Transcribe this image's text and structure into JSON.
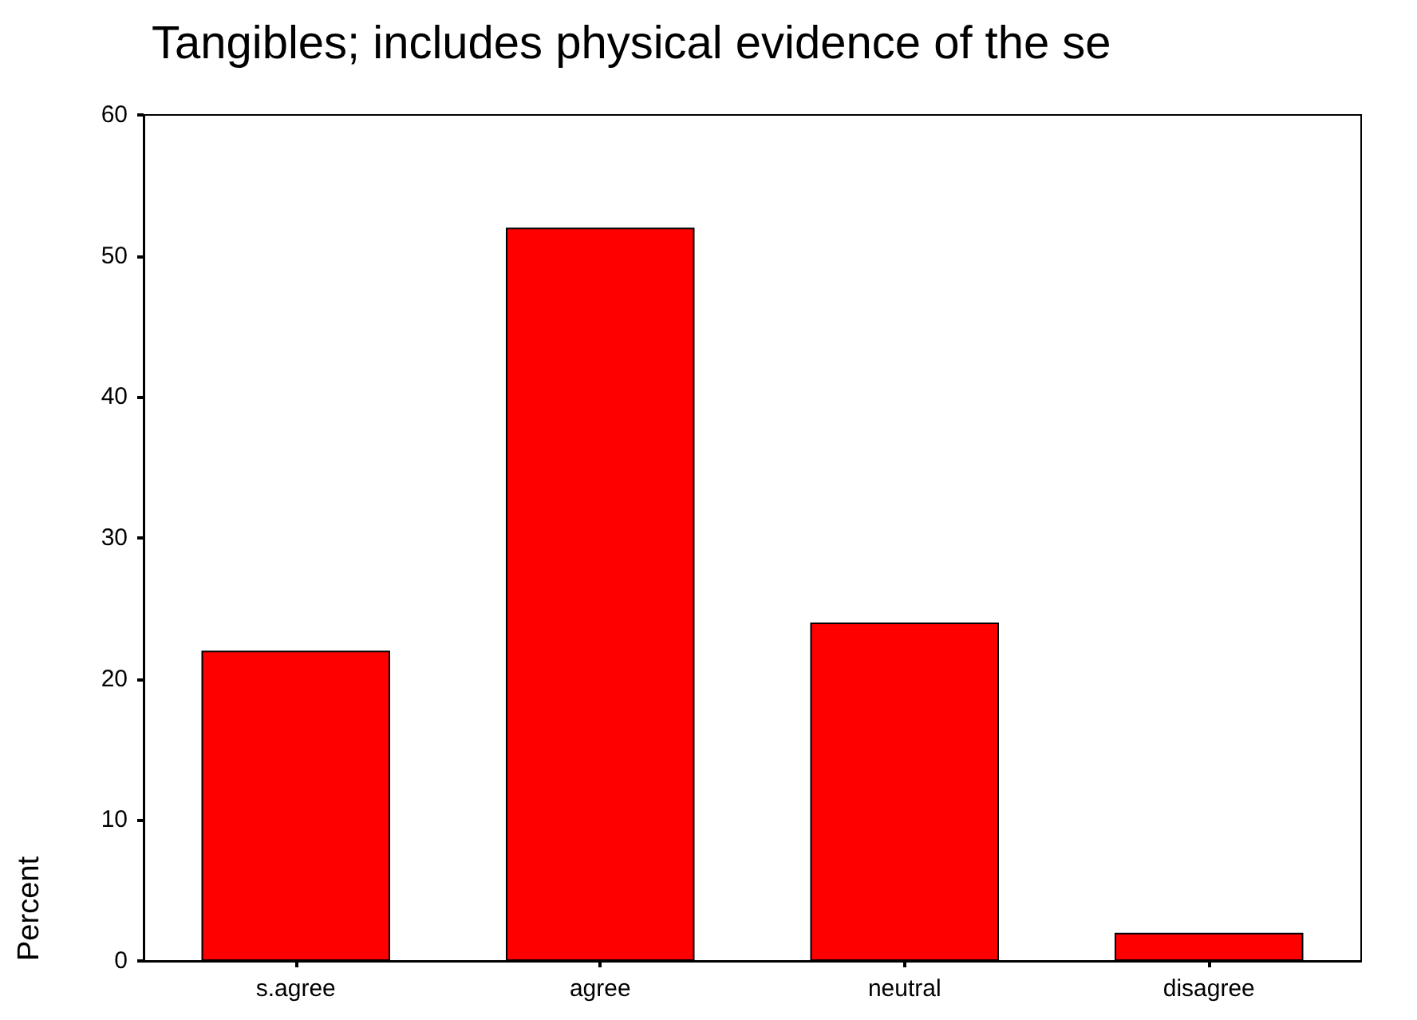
{
  "chart_data": {
    "type": "bar",
    "title": "Tangibles; includes physical evidence of the se",
    "ylabel": "Percent",
    "categories": [
      "s.agree",
      "agree",
      "neutral",
      "disagree"
    ],
    "values": [
      22,
      52,
      24,
      2
    ],
    "color": "#ff0000",
    "ylim": [
      0,
      60
    ],
    "yticks": [
      0,
      10,
      20,
      30,
      40,
      50,
      60
    ],
    "grid": false
  }
}
